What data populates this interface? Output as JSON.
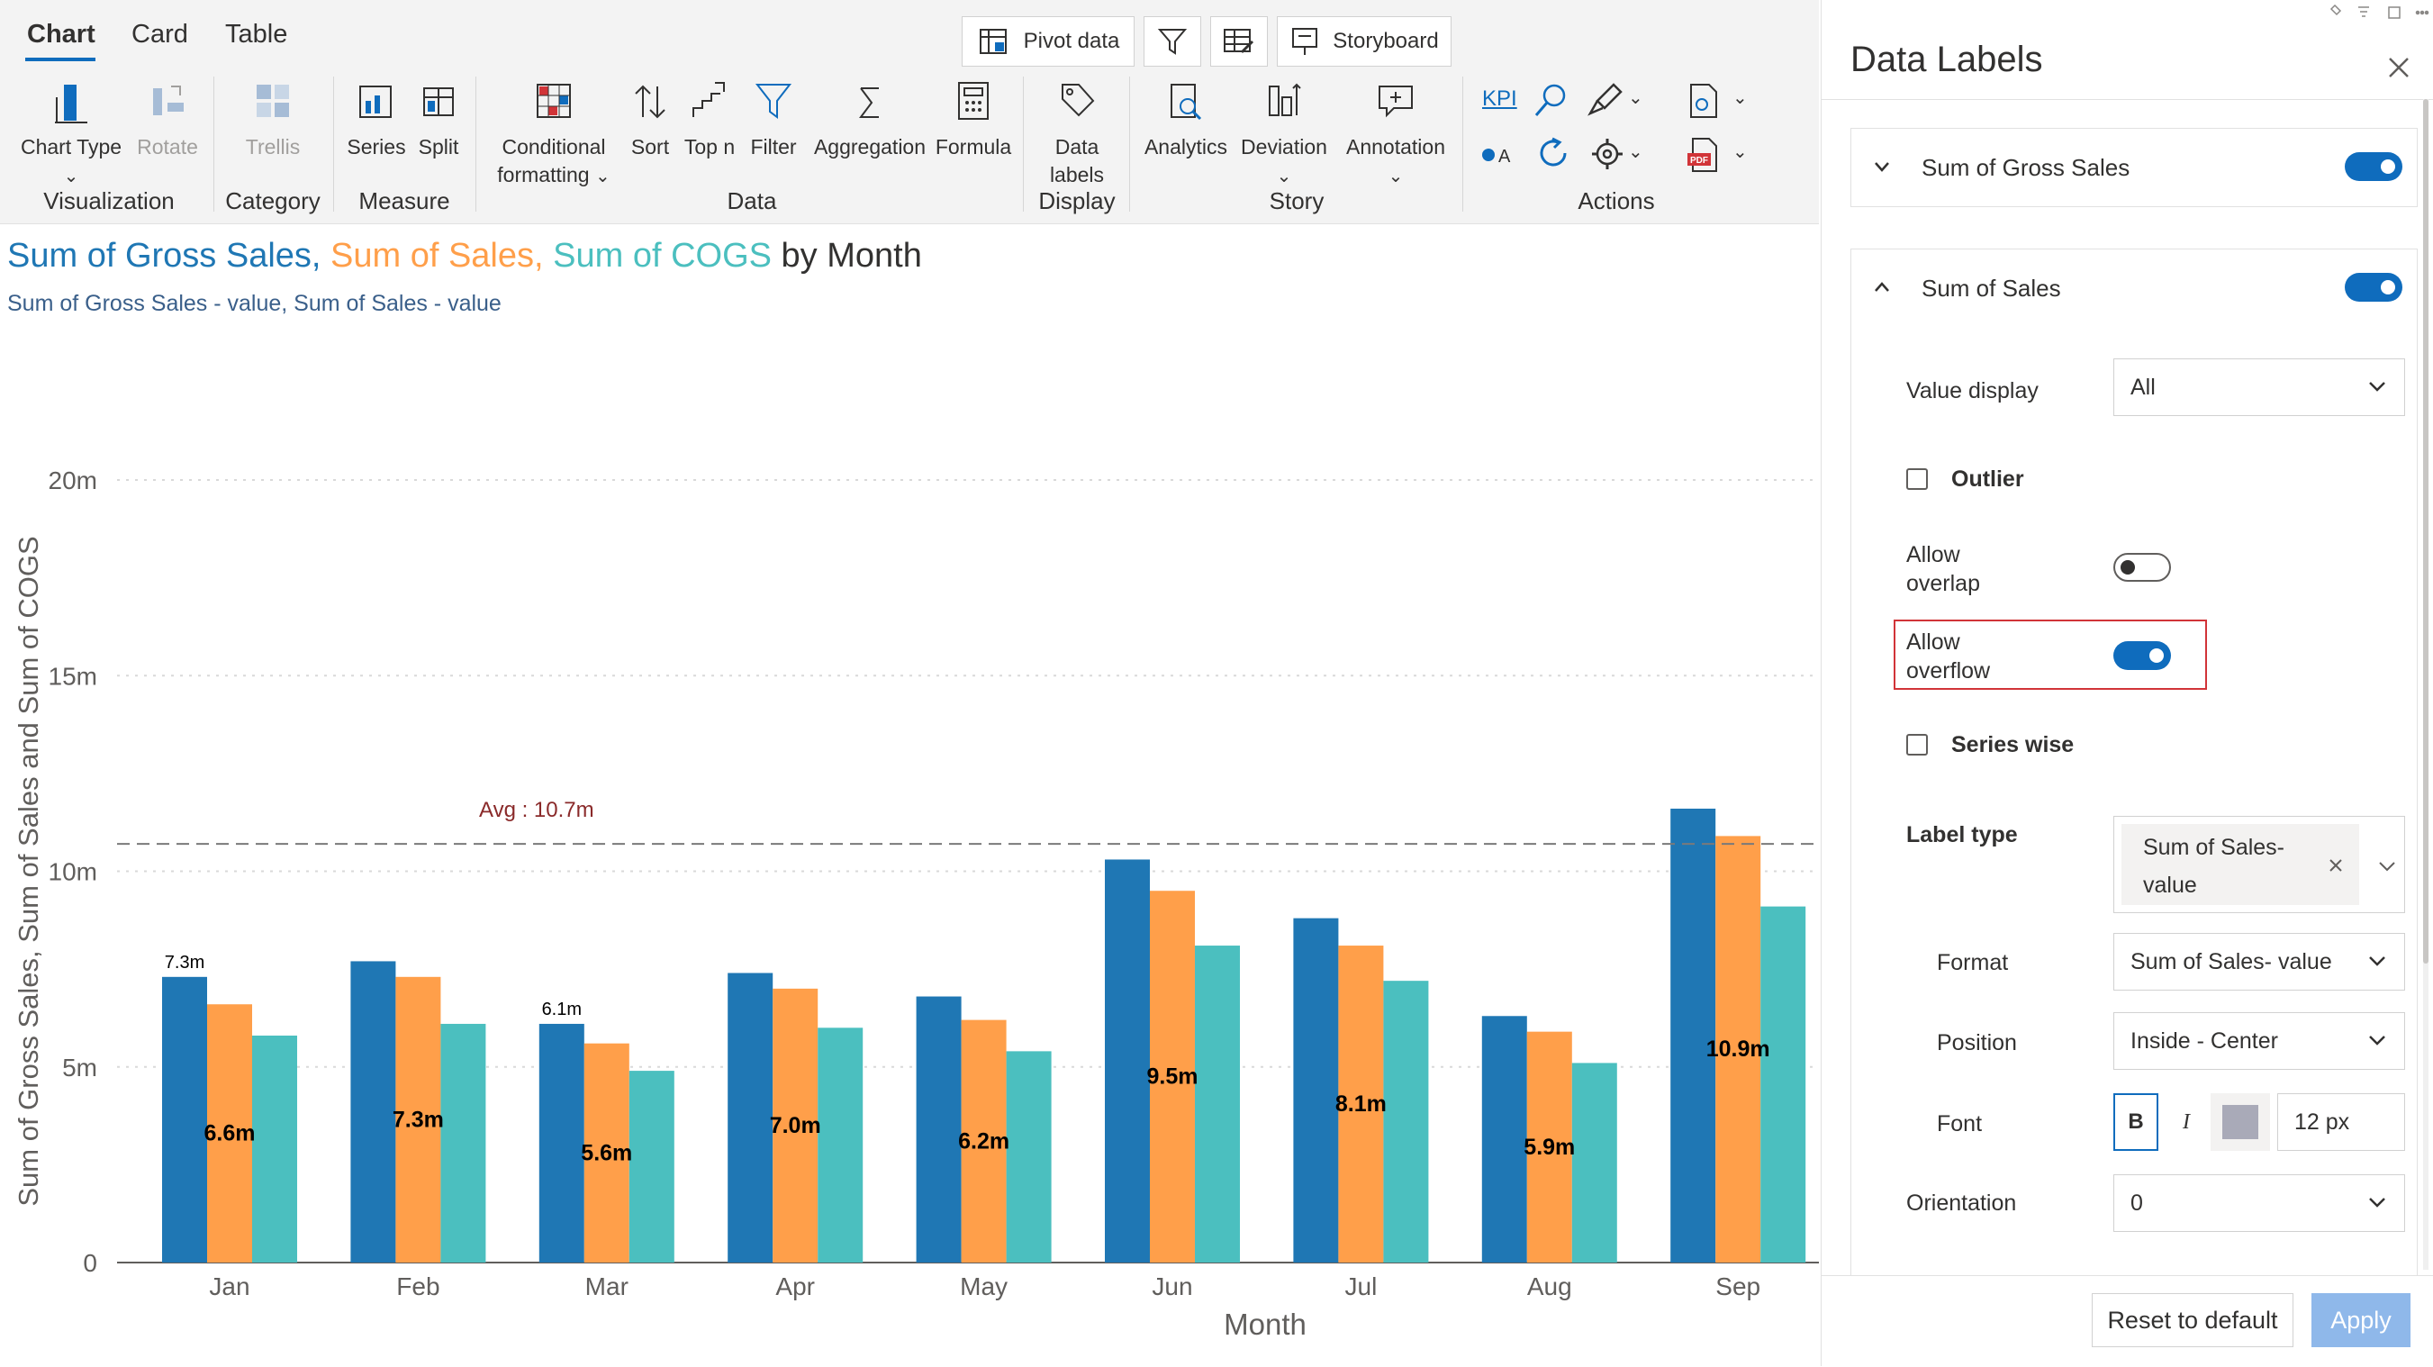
{
  "ribbon": {
    "tabs": [
      {
        "label": "Chart"
      },
      {
        "label": "Card"
      },
      {
        "label": "Table"
      }
    ],
    "top_buttons": {
      "pivot": "Pivot data",
      "storyboard": "Storyboard"
    },
    "buttons": {
      "chart_type": "Chart Type",
      "rotate": "Rotate",
      "trellis": "Trellis",
      "series": "Series",
      "split": "Split",
      "cond_format_1": "Conditional",
      "cond_format_2": "formatting",
      "sort": "Sort",
      "topn": "Top n",
      "filter": "Filter",
      "aggregation": "Aggregation",
      "formula": "Formula",
      "data_labels_1": "Data",
      "data_labels_2": "labels",
      "analytics": "Analytics",
      "deviation": "Deviation",
      "annotation": "Annotation",
      "kpi": "KPI"
    },
    "groups": {
      "visualization": "Visualization",
      "category": "Category",
      "measure": "Measure",
      "data": "Data",
      "display": "Display",
      "story": "Story",
      "actions": "Actions"
    }
  },
  "chart": {
    "title_parts": [
      "Sum of Gross Sales, ",
      "Sum of Sales, ",
      "Sum of COGS",
      " by Month"
    ],
    "subtitle": "Sum of Gross Sales - value, Sum of  Sales - value",
    "avg_label": "Avg : 10.7m"
  },
  "chart_data": {
    "type": "bar",
    "title": "Sum of Gross Sales, Sum of Sales, Sum of COGS by Month",
    "xlabel": "Month",
    "ylabel": "Sum of Gross Sales, Sum of Sales and Sum of COGS",
    "categories": [
      "Jan",
      "Feb",
      "Mar",
      "Apr",
      "May",
      "Jun",
      "Jul",
      "Aug",
      "Sep"
    ],
    "ylim": [
      0,
      20
    ],
    "y_ticks": [
      "0",
      "5m",
      "10m",
      "15m",
      "20m"
    ],
    "grid": true,
    "series": [
      {
        "name": "Sum of Gross Sales",
        "color": "#1f77b4",
        "values": [
          7.3,
          7.7,
          6.1,
          7.4,
          6.8,
          10.3,
          8.8,
          6.3,
          11.6
        ]
      },
      {
        "name": "Sum of Sales",
        "color": "#ff9f4a",
        "values": [
          6.6,
          7.3,
          5.6,
          7.0,
          6.2,
          9.5,
          8.1,
          5.9,
          10.9
        ]
      },
      {
        "name": "Sum of COGS",
        "color": "#4bbfbf",
        "values": [
          5.8,
          6.1,
          4.9,
          6.0,
          5.4,
          8.1,
          7.2,
          5.1,
          9.1
        ]
      }
    ],
    "data_labels": {
      "gross": [
        "7.3m",
        "",
        "6.1m",
        "",
        "",
        "",
        "",
        "",
        ""
      ],
      "sales": [
        "6.6m",
        "7.3m",
        "5.6m",
        "7.0m",
        "6.2m",
        "9.5m",
        "8.1m",
        "5.9m",
        "10.9m"
      ]
    },
    "average_line": {
      "value": 10.7,
      "label": "Avg : 10.7m"
    }
  },
  "panel": {
    "title": "Data Labels",
    "gross_section": "Sum of Gross Sales",
    "sales_section": "Sum of Sales",
    "value_display_label": "Value display",
    "value_display_value": "All",
    "outlier": "Outlier",
    "allow_overlap_1": "Allow",
    "allow_overlap_2": "overlap",
    "allow_overflow_1": "Allow",
    "allow_overflow_2": "overflow",
    "series_wise": "Series wise",
    "label_type": "Label type",
    "label_type_chip_1": "Sum of Sales-",
    "label_type_chip_2": "value",
    "format_label": "Format",
    "format_value": "Sum of Sales- value",
    "position_label": "Position",
    "position_value": "Inside - Center",
    "font_label": "Font",
    "font_bold": "B",
    "font_italic": "I",
    "font_size": "12 px",
    "orientation_label": "Orientation",
    "orientation_value": "0",
    "reset": "Reset to default",
    "apply": "Apply",
    "colors": {
      "accent": "#0f6cbd",
      "highlight": "#d13438"
    }
  }
}
